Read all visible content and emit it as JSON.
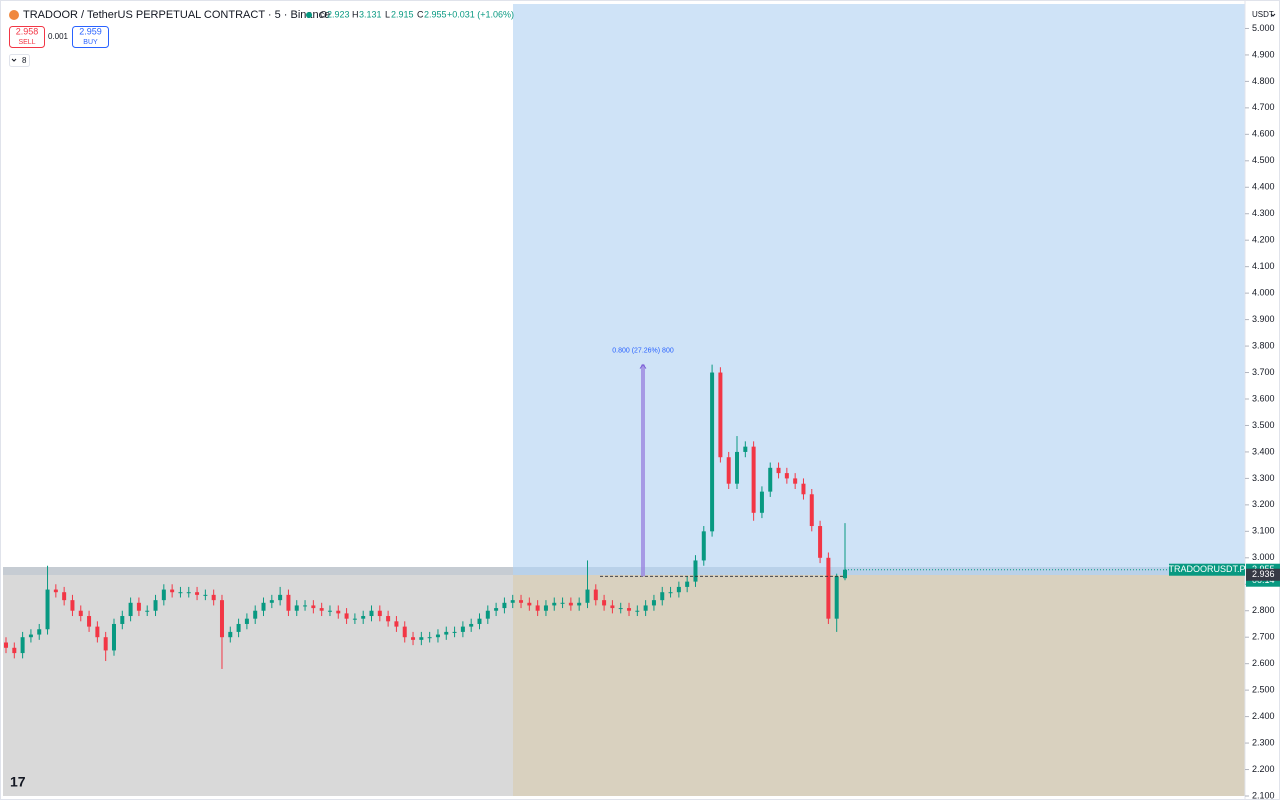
{
  "header": {
    "symbol": "TRADOOR / TetherUS PERPETUAL CONTRACT · 5 · Binance",
    "ohlc": [
      {
        "label": "O",
        "value": 2.923
      },
      {
        "label": "H",
        "value": 3.131
      },
      {
        "label": "L",
        "value": 2.915
      },
      {
        "label": "C",
        "value": 2.955
      }
    ],
    "change": "+0.031 (+1.06%)",
    "sell_price": 2.958,
    "sell": "SELL",
    "quantity": 0.001,
    "buy_price": 2.959,
    "buy": "BUY",
    "indicators": 8,
    "currency": "USDT"
  },
  "chart_data": {
    "type": "candlestick",
    "up_color": "#089981",
    "down_color": "#f23645",
    "open": [
      2.68,
      2.66,
      2.64,
      2.7,
      2.71,
      2.73,
      2.88,
      2.87,
      2.84,
      2.8,
      2.78,
      2.74,
      2.7,
      2.65,
      2.75,
      2.78,
      2.83,
      2.8,
      2.8,
      2.84,
      2.88,
      2.87,
      2.87,
      2.87,
      2.86,
      2.86,
      2.84,
      2.7,
      2.72,
      2.75,
      2.77,
      2.8,
      2.83,
      2.84,
      2.86,
      2.8,
      2.82,
      2.82,
      2.81,
      2.8,
      2.8,
      2.79,
      2.77,
      2.77,
      2.78,
      2.8,
      2.78,
      2.76,
      2.74,
      2.7,
      2.69,
      2.7,
      2.7,
      2.71,
      2.72,
      2.72,
      2.74,
      2.75,
      2.77,
      2.8,
      2.81,
      2.83,
      2.84,
      2.83,
      2.82,
      2.8,
      2.82,
      2.83,
      2.83,
      2.82,
      2.83,
      2.88,
      2.84,
      2.82,
      2.81,
      2.81,
      2.8,
      2.8,
      2.82,
      2.84,
      2.87,
      2.87,
      2.89,
      2.91,
      2.99,
      3.1,
      3.7,
      3.38,
      3.28,
      3.4,
      3.42,
      3.17,
      3.25,
      3.34,
      3.32,
      3.3,
      3.28,
      3.24,
      3.12,
      3.0,
      2.77,
      2.923
    ],
    "high": [
      2.7,
      2.68,
      2.72,
      2.73,
      2.75,
      2.97,
      2.9,
      2.89,
      2.86,
      2.82,
      2.8,
      2.76,
      2.72,
      2.77,
      2.8,
      2.85,
      2.85,
      2.82,
      2.86,
      2.9,
      2.9,
      2.89,
      2.89,
      2.89,
      2.88,
      2.88,
      2.86,
      2.74,
      2.77,
      2.79,
      2.82,
      2.85,
      2.86,
      2.89,
      2.88,
      2.84,
      2.84,
      2.84,
      2.83,
      2.82,
      2.82,
      2.81,
      2.79,
      2.8,
      2.82,
      2.82,
      2.8,
      2.78,
      2.76,
      2.72,
      2.72,
      2.72,
      2.73,
      2.74,
      2.74,
      2.76,
      2.77,
      2.79,
      2.82,
      2.83,
      2.85,
      2.86,
      2.86,
      2.85,
      2.84,
      2.84,
      2.85,
      2.85,
      2.85,
      2.85,
      2.99,
      2.9,
      2.86,
      2.84,
      2.83,
      2.83,
      2.82,
      2.84,
      2.86,
      2.89,
      2.89,
      2.91,
      2.93,
      3.01,
      3.12,
      3.73,
      3.72,
      3.4,
      3.46,
      3.44,
      3.44,
      3.27,
      3.36,
      3.36,
      3.34,
      3.32,
      3.3,
      3.26,
      3.14,
      3.02,
      2.94,
      3.131
    ],
    "low": [
      2.64,
      2.62,
      2.62,
      2.68,
      2.69,
      2.71,
      2.85,
      2.82,
      2.78,
      2.76,
      2.72,
      2.68,
      2.61,
      2.63,
      2.73,
      2.76,
      2.78,
      2.78,
      2.78,
      2.82,
      2.85,
      2.85,
      2.85,
      2.84,
      2.84,
      2.82,
      2.58,
      2.68,
      2.7,
      2.73,
      2.75,
      2.78,
      2.81,
      2.82,
      2.78,
      2.78,
      2.8,
      2.79,
      2.78,
      2.78,
      2.77,
      2.75,
      2.75,
      2.75,
      2.76,
      2.76,
      2.74,
      2.72,
      2.68,
      2.67,
      2.67,
      2.68,
      2.68,
      2.69,
      2.7,
      2.7,
      2.72,
      2.73,
      2.75,
      2.78,
      2.79,
      2.81,
      2.81,
      2.8,
      2.78,
      2.78,
      2.8,
      2.81,
      2.8,
      2.8,
      2.81,
      2.82,
      2.8,
      2.79,
      2.79,
      2.78,
      2.78,
      2.78,
      2.8,
      2.82,
      2.85,
      2.85,
      2.87,
      2.89,
      2.97,
      3.08,
      3.36,
      3.26,
      3.26,
      3.38,
      3.14,
      3.15,
      3.23,
      3.3,
      3.28,
      3.26,
      3.22,
      3.1,
      2.98,
      2.75,
      2.72,
      2.915
    ],
    "close": [
      2.66,
      2.64,
      2.7,
      2.71,
      2.73,
      2.88,
      2.87,
      2.84,
      2.8,
      2.78,
      2.74,
      2.7,
      2.65,
      2.75,
      2.78,
      2.83,
      2.8,
      2.8,
      2.84,
      2.88,
      2.87,
      2.87,
      2.87,
      2.86,
      2.86,
      2.84,
      2.7,
      2.72,
      2.75,
      2.77,
      2.8,
      2.83,
      2.84,
      2.86,
      2.8,
      2.82,
      2.82,
      2.81,
      2.8,
      2.8,
      2.79,
      2.77,
      2.77,
      2.78,
      2.8,
      2.78,
      2.76,
      2.74,
      2.7,
      2.69,
      2.7,
      2.7,
      2.71,
      2.72,
      2.72,
      2.74,
      2.75,
      2.77,
      2.8,
      2.81,
      2.83,
      2.84,
      2.83,
      2.82,
      2.8,
      2.82,
      2.83,
      2.83,
      2.82,
      2.83,
      2.88,
      2.84,
      2.82,
      2.81,
      2.81,
      2.8,
      2.8,
      2.82,
      2.84,
      2.87,
      2.87,
      2.89,
      2.91,
      2.99,
      3.1,
      3.7,
      3.38,
      3.28,
      3.4,
      3.42,
      3.17,
      3.25,
      3.34,
      3.32,
      3.3,
      3.28,
      3.24,
      3.12,
      3.0,
      2.77,
      2.93,
      2.955
    ],
    "ylim": [
      2.1,
      5.1
    ],
    "yticks": [
      {
        "value": 5.0,
        "label": "5.000"
      },
      {
        "value": 4.9,
        "label": "4.900"
      },
      {
        "value": 4.8,
        "label": "4.800"
      },
      {
        "value": 4.7,
        "label": "4.700"
      },
      {
        "value": 4.6,
        "label": "4.600"
      },
      {
        "value": 4.5,
        "label": "4.500"
      },
      {
        "value": 4.4,
        "label": "4.400"
      },
      {
        "value": 4.3,
        "label": "4.300"
      },
      {
        "value": 4.2,
        "label": "4.200"
      },
      {
        "value": 4.1,
        "label": "4.100"
      },
      {
        "value": 4.0,
        "label": "4.000"
      },
      {
        "value": 3.9,
        "label": "3.900"
      },
      {
        "value": 3.8,
        "label": "3.800"
      },
      {
        "value": 3.7,
        "label": "3.700"
      },
      {
        "value": 3.6,
        "label": "3.600"
      },
      {
        "value": 3.5,
        "label": "3.500"
      },
      {
        "value": 3.4,
        "label": "3.400"
      },
      {
        "value": 3.3,
        "label": "3.300"
      },
      {
        "value": 3.2,
        "label": "3.200"
      },
      {
        "value": 3.1,
        "label": "3.100"
      },
      {
        "value": 3.0,
        "label": "3.000"
      },
      {
        "value": 2.9,
        "label": "2.900"
      },
      {
        "value": 2.8,
        "label": "2.800"
      },
      {
        "value": 2.7,
        "label": "2.700"
      },
      {
        "value": 2.6,
        "label": "2.600"
      },
      {
        "value": 2.5,
        "label": "2.500"
      },
      {
        "value": 2.4,
        "label": "2.400"
      },
      {
        "value": 2.3,
        "label": "2.300"
      },
      {
        "value": 2.2,
        "label": "2.200"
      },
      {
        "value": 2.1,
        "label": "2.100"
      }
    ],
    "measure": {
      "label": "0.800 (27.26%) 800",
      "from": 2.93,
      "to": 3.73
    },
    "last_price": {
      "symbol": "TRADOORUSDT.P",
      "value": 2.955,
      "countdown": "00:14"
    },
    "mark_price": 2.936
  }
}
